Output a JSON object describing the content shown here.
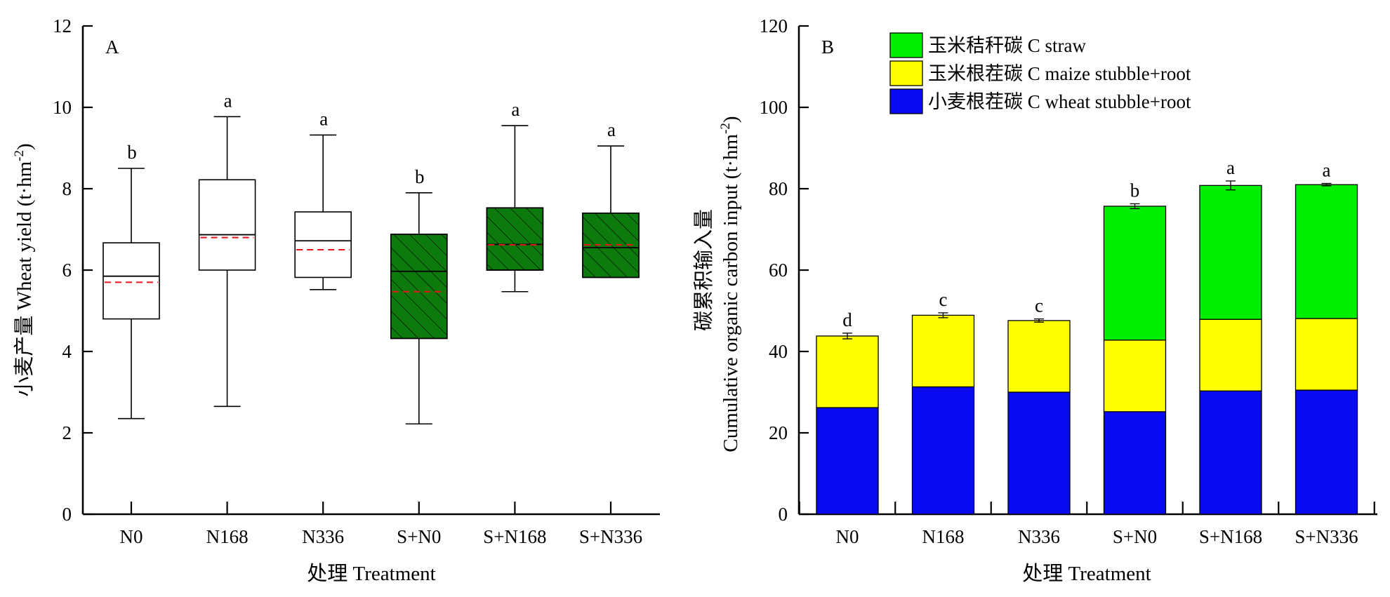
{
  "chart_data": [
    {
      "type": "box",
      "panel_label": "A",
      "categories": [
        "N0",
        "N168",
        "N336",
        "S+N0",
        "S+N168",
        "S+N336"
      ],
      "xlabel": "处理 Treatment",
      "ylabel_cn": "小麦产量 Wheat yield (t·hm",
      "ylabel_sup": "-2",
      "ylabel_close": ")",
      "ylim": [
        0,
        12
      ],
      "yticks": [
        "0",
        "2",
        "4",
        "6",
        "8",
        "10",
        "12"
      ],
      "grid": false,
      "boxes": [
        {
          "min": 2.35,
          "q1": 4.8,
          "median": 5.85,
          "mean": 5.7,
          "q3": 6.67,
          "max": 8.5,
          "letter": "b",
          "fill": "#ffffff",
          "hatched": false
        },
        {
          "min": 2.65,
          "q1": 6.0,
          "median": 6.87,
          "mean": 6.8,
          "q3": 8.22,
          "max": 9.77,
          "letter": "a",
          "fill": "#ffffff",
          "hatched": false
        },
        {
          "min": 5.52,
          "q1": 5.82,
          "median": 6.72,
          "mean": 6.5,
          "q3": 7.43,
          "max": 9.32,
          "letter": "a",
          "fill": "#ffffff",
          "hatched": false
        },
        {
          "min": 2.22,
          "q1": 4.32,
          "median": 5.97,
          "mean": 5.47,
          "q3": 6.88,
          "max": 7.9,
          "letter": "b",
          "fill": "#0c7a0c",
          "hatched": true
        },
        {
          "min": 5.47,
          "q1": 6.0,
          "median": 6.63,
          "mean": 6.62,
          "q3": 7.53,
          "max": 9.55,
          "letter": "a",
          "fill": "#0c7a0c",
          "hatched": true
        },
        {
          "min": 5.82,
          "q1": 5.82,
          "median": 6.55,
          "mean": 6.62,
          "q3": 7.4,
          "max": 9.05,
          "letter": "a",
          "fill": "#0c7a0c",
          "hatched": true
        }
      ],
      "mean_line_color": "#e8141b"
    },
    {
      "type": "bar",
      "stacked": true,
      "panel_label": "B",
      "categories": [
        "N0",
        "N168",
        "N336",
        "S+N0",
        "S+N168",
        "S+N336"
      ],
      "xlabel": "处理 Treatment",
      "ylabel_line1": "碳累积输入量",
      "ylabel_line2": "Cumulative organic carbon input (t·hm",
      "ylabel_sup": "-2",
      "ylabel_close": ")",
      "ylim": [
        0,
        120
      ],
      "yticks": [
        "0",
        "20",
        "40",
        "60",
        "80",
        "100",
        "120"
      ],
      "grid": false,
      "legend_position": "top",
      "series": [
        {
          "name": "小麦根茬碳 C wheat stubble+root",
          "color": "#0a0af0",
          "values": [
            26.2,
            31.3,
            30.0,
            25.2,
            30.3,
            30.5
          ]
        },
        {
          "name": "玉米根茬碳 C maize stubble+root",
          "color": "#ffff00",
          "values": [
            17.6,
            17.6,
            17.6,
            17.6,
            17.6,
            17.6
          ]
        },
        {
          "name": "玉米秸秆碳 C straw",
          "color": "#00ee00",
          "values": [
            0,
            0,
            0,
            32.9,
            32.9,
            32.9
          ]
        }
      ],
      "legend_order": [
        2,
        1,
        0
      ],
      "totals": [
        43.8,
        48.9,
        47.6,
        75.7,
        80.8,
        81.0
      ],
      "errors": [
        0.7,
        0.6,
        0.4,
        0.6,
        1.1,
        0.3
      ],
      "letters": [
        "d",
        "c",
        "c",
        "b",
        "a",
        "a"
      ]
    }
  ]
}
